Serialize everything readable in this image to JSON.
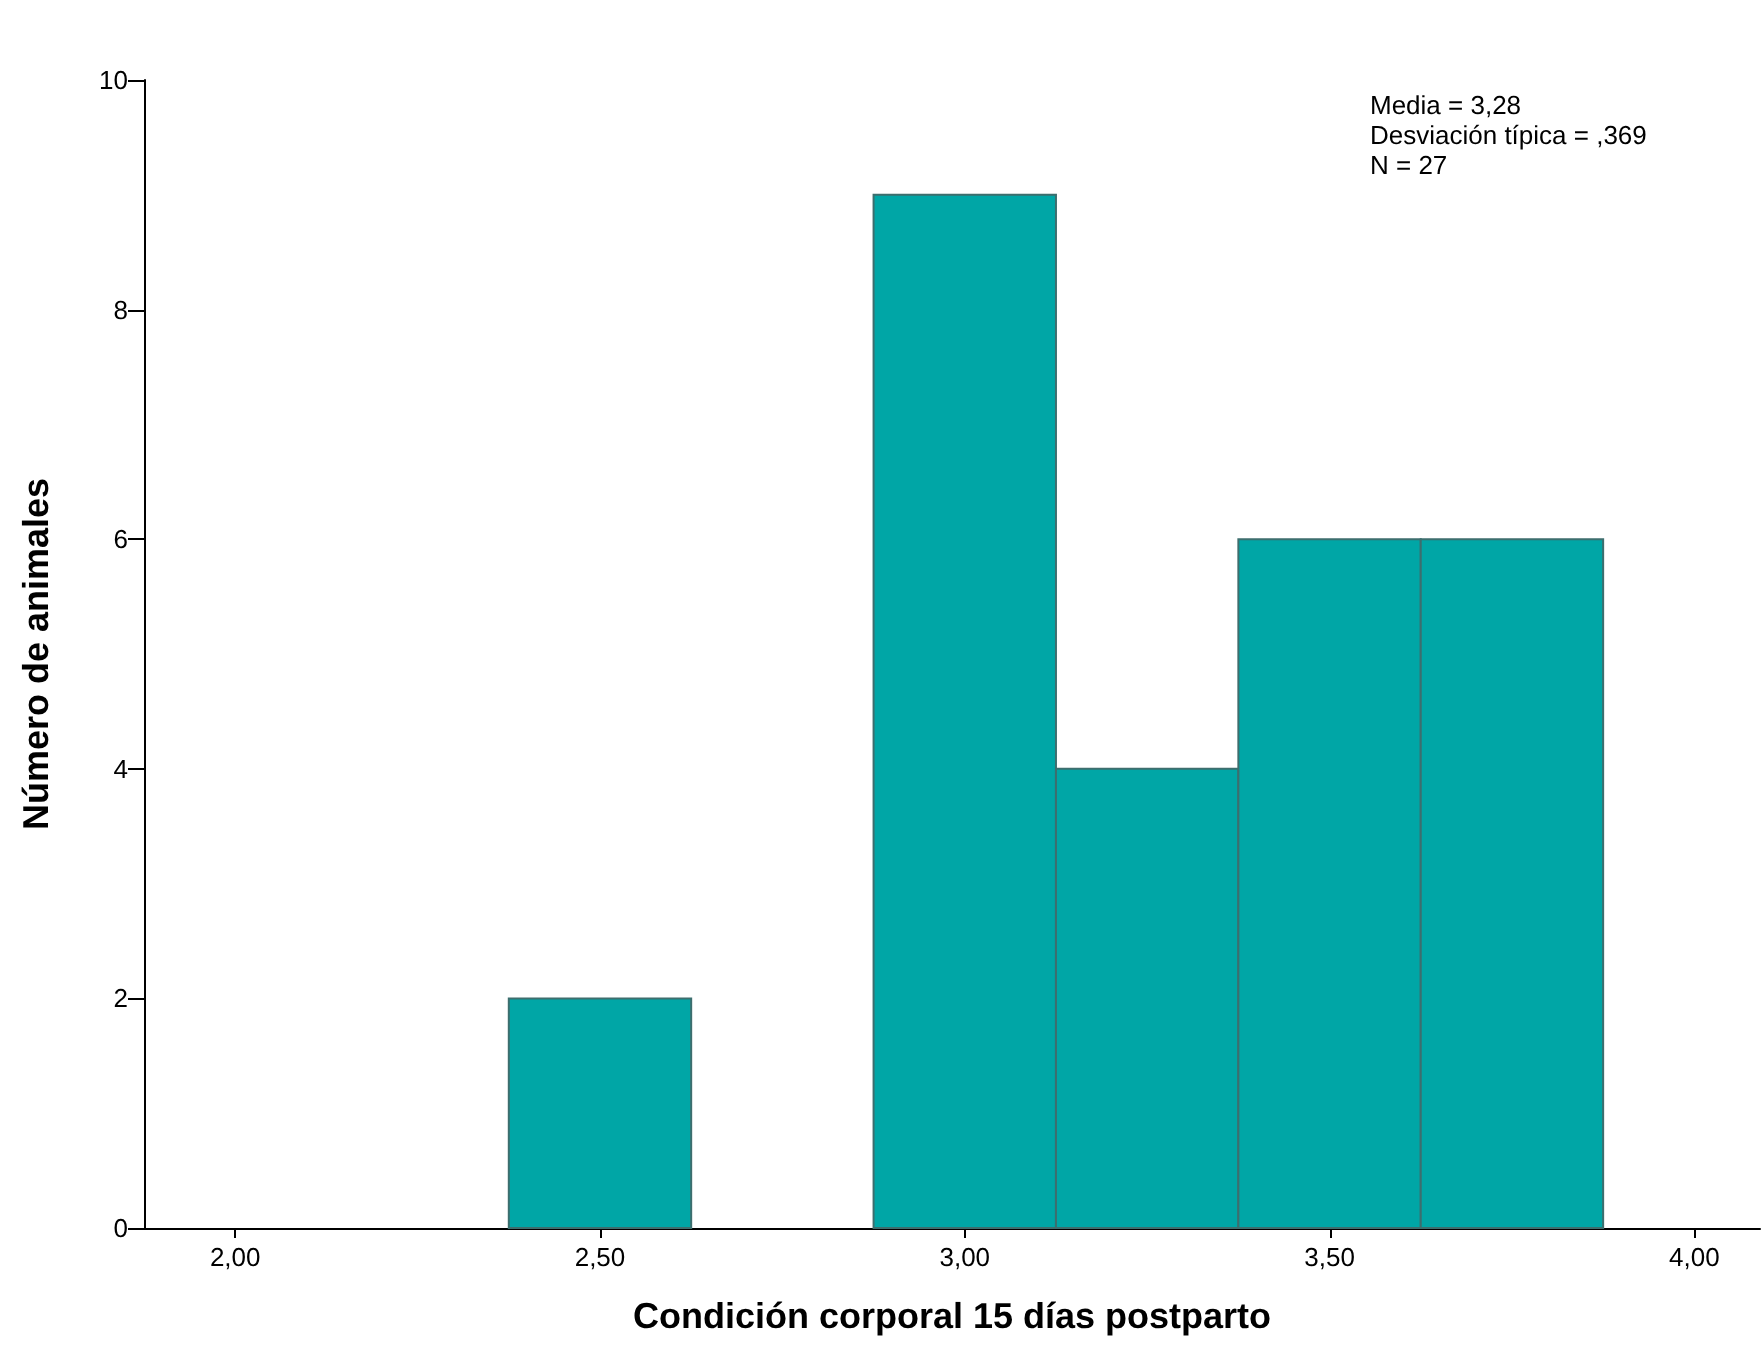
{
  "chart_data": {
    "type": "histogram",
    "xlabel": "Condición corporal 15 días postparto",
    "ylabel": "Número de animales",
    "bins": [
      2.375,
      2.625,
      2.875,
      3.125,
      3.375,
      3.625,
      3.875
    ],
    "values": [
      2,
      0,
      9,
      4,
      6,
      6
    ],
    "color": "#00a6a6",
    "xlim": [
      1.875,
      4.09
    ],
    "xticks": [
      {
        "value": 2,
        "label": "2,00"
      },
      {
        "value": 2.5,
        "label": "2,50"
      },
      {
        "value": 3,
        "label": "3,00"
      },
      {
        "value": 3.5,
        "label": "3,50"
      },
      {
        "value": 4,
        "label": "4,00"
      }
    ],
    "ylim": [
      0,
      10
    ],
    "yticks": [
      0,
      2,
      4,
      6,
      8,
      10
    ],
    "grid": false,
    "annotations": [
      "Media = 3,28",
      "Desviación típica = ,369",
      "N = 27"
    ]
  }
}
